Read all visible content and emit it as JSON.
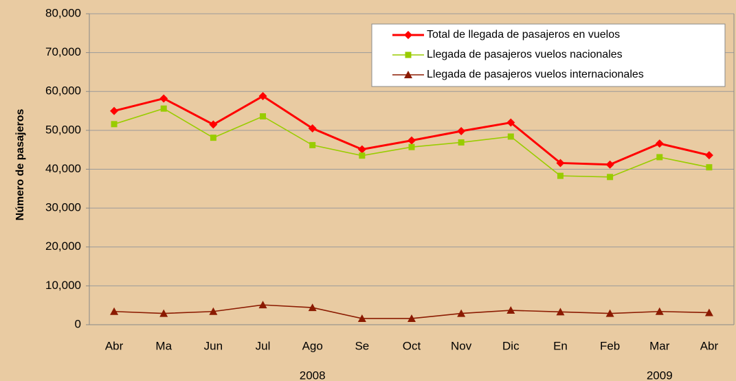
{
  "chart_data": {
    "type": "line",
    "y_label": "Número de pasajeros",
    "categories": [
      "Abr",
      "Ma",
      "Jun",
      "Jul",
      "Ago",
      "Se",
      "Oct",
      "Nov",
      "Dic",
      "En",
      "Feb",
      "Mar",
      "Abr"
    ],
    "annotations": [
      "2008",
      "2009"
    ],
    "series": [
      {
        "name": "Total de llegada de pasajeros en vuelos",
        "color": "#ff0000",
        "marker": "diamond",
        "values": [
          55000,
          58200,
          51500,
          58800,
          50500,
          45100,
          47400,
          49800,
          52000,
          41600,
          41200,
          46600,
          43600
        ]
      },
      {
        "name": "Llegada de pasajeros vuelos nacionales",
        "color": "#99cc00",
        "marker": "square",
        "values": [
          51600,
          55600,
          48100,
          53600,
          46200,
          43500,
          45700,
          46900,
          48400,
          38300,
          38000,
          43100,
          40500
        ]
      },
      {
        "name": "Llegada de pasajeros vuelos internacionales",
        "color": "#8b1a00",
        "marker": "triangle",
        "values": [
          3400,
          2900,
          3400,
          5100,
          4400,
          1600,
          1600,
          2900,
          3700,
          3300,
          2900,
          3400,
          3100
        ]
      }
    ],
    "ylim": [
      0,
      80000
    ],
    "yticks": [
      0,
      {
        "value": 10000,
        "label": "10,000"
      },
      {
        "value": 20000,
        "label": "20,000"
      },
      {
        "value": 30000,
        "label": "30,000"
      },
      {
        "value": 40000,
        "label": "40,000"
      },
      {
        "value": 50000,
        "label": "50,000"
      },
      {
        "value": 60000,
        "label": "60,000"
      },
      {
        "value": 70000,
        "label": "70,000"
      },
      {
        "value": 80000,
        "label": "80,000"
      }
    ],
    "grid": true,
    "legend": "top-right"
  }
}
